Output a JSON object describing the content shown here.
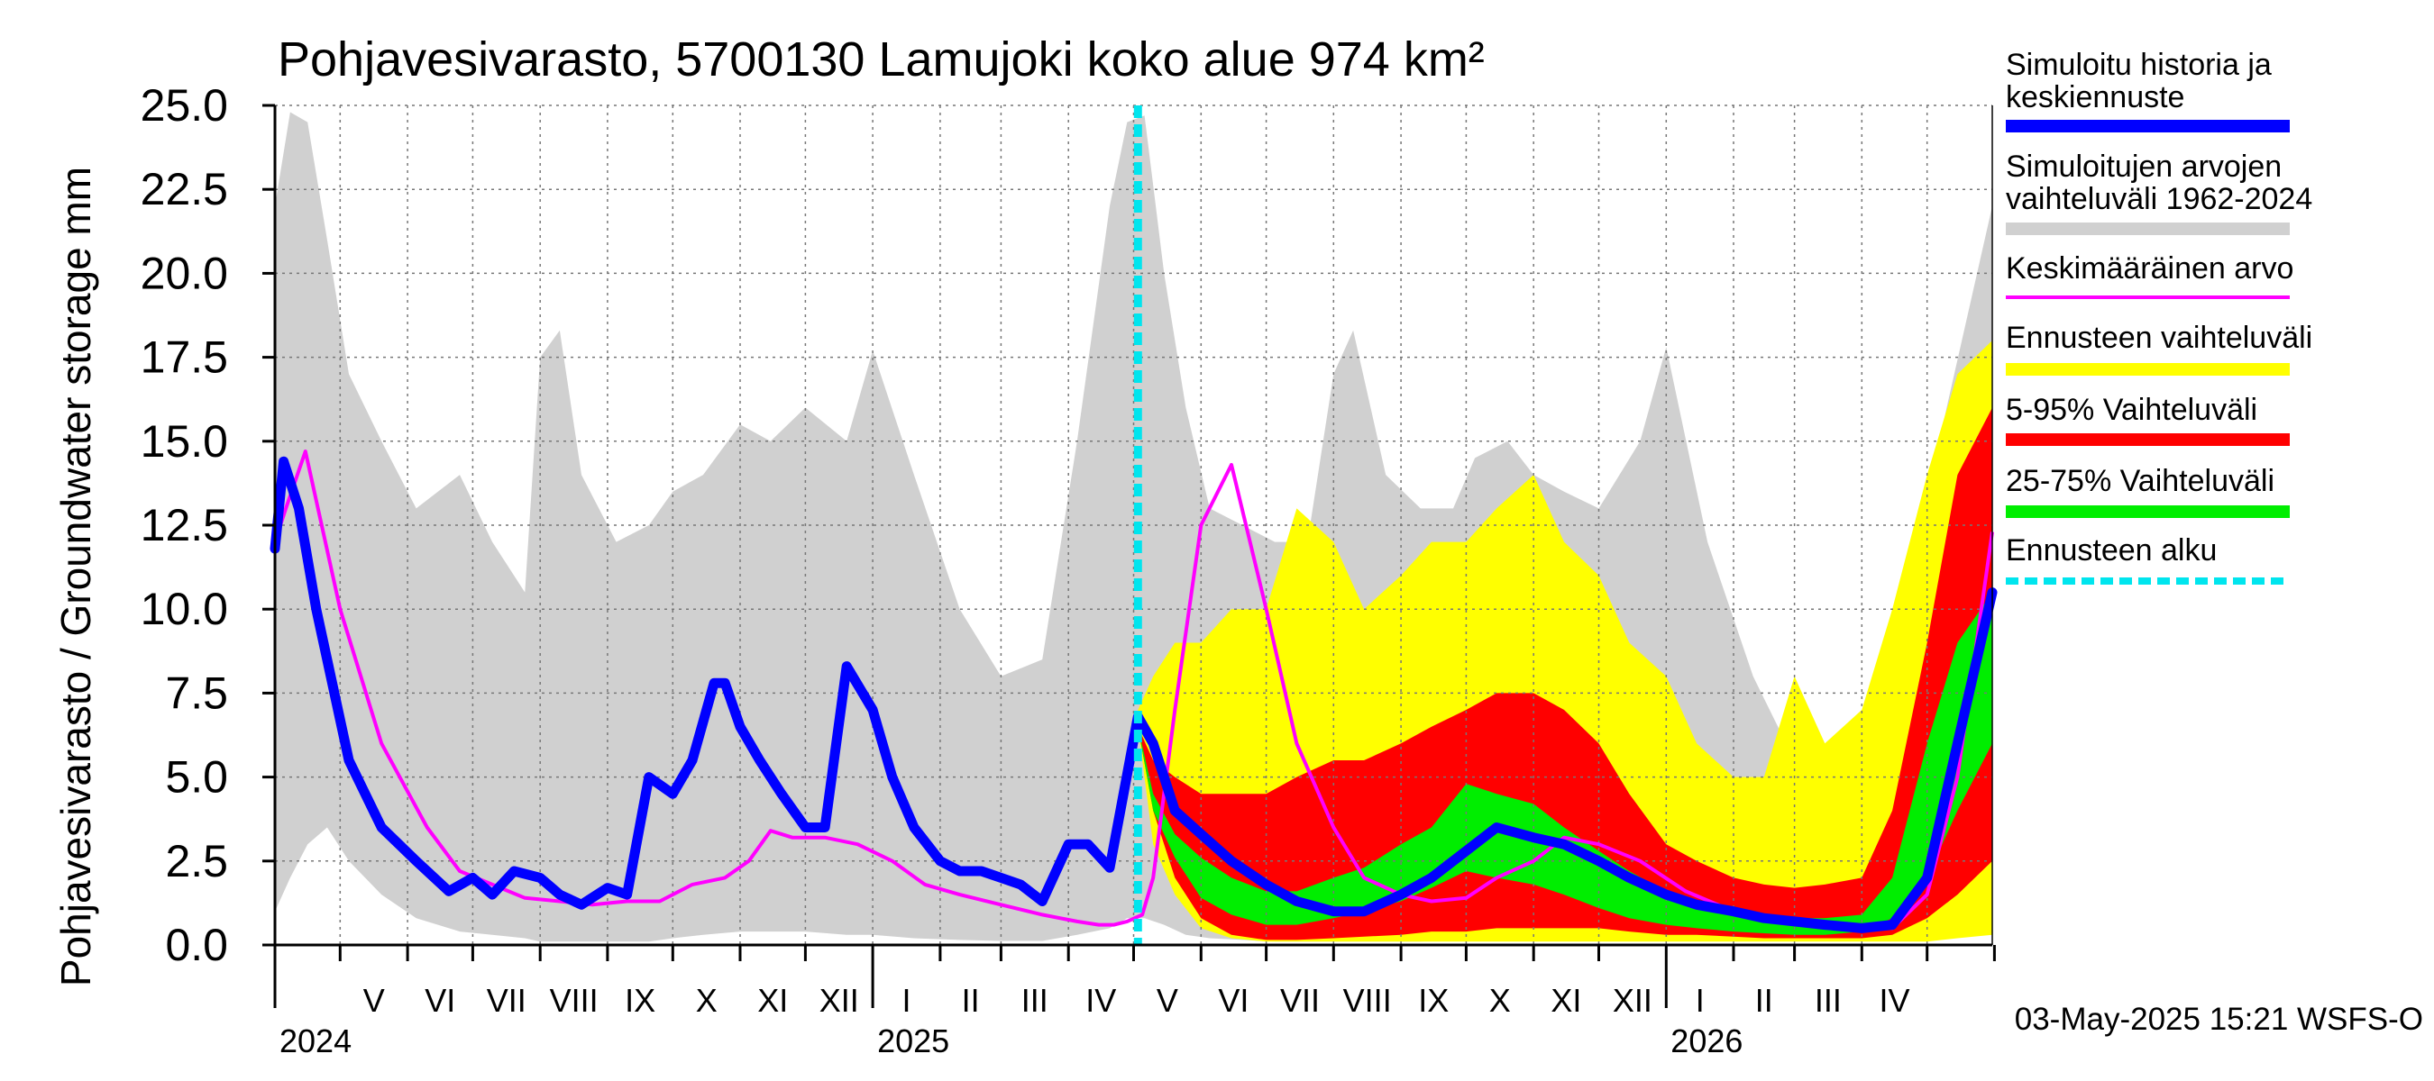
{
  "chart_data": {
    "type": "area",
    "title": "Pohjavesivarasto, 5700130 Lamujoki koko alue 974 km²",
    "ylabel": "Pohjavesivarasto / Groundwater storage   mm",
    "ylim": [
      0,
      25
    ],
    "yticks": [
      "0.0",
      "2.5",
      "5.0",
      "7.5",
      "10.0",
      "12.5",
      "15.0",
      "17.5",
      "20.0",
      "22.5",
      "25.0"
    ],
    "x_range": [
      "2024-04-01",
      "2026-05-31"
    ],
    "month_labels": [
      "V",
      "VI",
      "VII",
      "VIII",
      "IX",
      "X",
      "XI",
      "XII",
      "I",
      "II",
      "III",
      "IV",
      "V",
      "VI",
      "VII",
      "VIII",
      "IX",
      "X",
      "XI",
      "XII",
      "I",
      "II",
      "III",
      "IV"
    ],
    "year_labels": [
      "2024",
      "2025",
      "2026"
    ],
    "forecast_start": "2025-05-03",
    "footer": "03-May-2025 15:21 WSFS-O",
    "grid": true,
    "legend_position": "right",
    "legend": [
      {
        "label": "Simuloitu historia ja keskiennuste",
        "color": "#0000ff"
      },
      {
        "label": "Simuloitujen arvojen vaihteluväli 1962-2024",
        "color": "#d0d0d0"
      },
      {
        "label": "Keskimääräinen arvo",
        "color": "#ff00ff"
      },
      {
        "label": "Ennusteen vaihteluväli",
        "color": "#ffff00"
      },
      {
        "label": "5-95% Vaihteluväli",
        "color": "#ff0000"
      },
      {
        "label": "25-75% Vaihteluväli",
        "color": "#00ee00"
      },
      {
        "label": "Ennusteen alku",
        "color": "#00e5ee"
      }
    ],
    "series": {
      "hist_range": {
        "x": [
          "2024-04-01",
          "2024-04-08",
          "2024-04-16",
          "2024-04-25",
          "2024-05-05",
          "2024-05-20",
          "2024-06-05",
          "2024-06-25",
          "2024-07-10",
          "2024-07-25",
          "2024-08-01",
          "2024-08-10",
          "2024-08-20",
          "2024-09-05",
          "2024-09-20",
          "2024-10-01",
          "2024-10-15",
          "2024-11-01",
          "2024-11-15",
          "2024-12-01",
          "2024-12-20",
          "2025-01-01",
          "2025-01-20",
          "2025-02-10",
          "2025-03-01",
          "2025-03-20",
          "2025-04-05",
          "2025-04-20",
          "2025-04-28",
          "2025-05-06",
          "2025-05-15",
          "2025-05-25",
          "2025-06-05",
          "2025-06-20",
          "2025-07-05",
          "2025-07-20",
          "2025-08-01",
          "2025-08-10",
          "2025-08-25",
          "2025-09-10",
          "2025-09-25",
          "2025-10-05",
          "2025-10-20",
          "2025-11-01",
          "2025-11-15",
          "2025-12-01",
          "2025-12-20",
          "2026-01-01",
          "2026-01-20",
          "2026-02-10",
          "2026-03-01",
          "2026-03-20",
          "2026-04-05",
          "2026-04-20",
          "2026-05-10",
          "2026-05-31"
        ],
        "max": [
          22,
          24.8,
          24.5,
          21,
          17,
          15,
          13,
          14,
          12,
          10.5,
          17.5,
          18.3,
          14,
          12,
          12.5,
          13.5,
          14,
          15.5,
          15,
          16,
          15,
          17.7,
          14,
          10,
          8,
          8.5,
          15,
          22,
          24.5,
          24.7,
          20,
          16,
          13,
          12.5,
          12,
          12,
          17,
          18.3,
          14,
          13,
          13,
          14.5,
          15,
          14,
          13.5,
          13,
          15,
          17.8,
          12,
          8,
          5.5,
          4,
          6,
          10,
          16,
          22
        ],
        "min": [
          1,
          2,
          3,
          3.5,
          2.5,
          1.5,
          0.8,
          0.4,
          0.3,
          0.2,
          0.1,
          0.1,
          0.1,
          0.1,
          0.1,
          0.2,
          0.3,
          0.4,
          0.4,
          0.4,
          0.3,
          0.3,
          0.2,
          0.15,
          0.12,
          0.12,
          0.3,
          0.5,
          0.8,
          0.8,
          0.6,
          0.3,
          0.2,
          0.15,
          0.1,
          0.1,
          0.1,
          0.1,
          0.1,
          0.1,
          0.15,
          0.2,
          0.25,
          0.3,
          0.3,
          0.3,
          0.25,
          0.2,
          0.2,
          0.15,
          0.12,
          0.15,
          0.2,
          0.3,
          0.5,
          1
        ]
      },
      "forecast_full": {
        "x": [
          "2025-05-03",
          "2025-05-10",
          "2025-05-20",
          "2025-06-01",
          "2025-06-15",
          "2025-07-01",
          "2025-07-15",
          "2025-08-01",
          "2025-08-15",
          "2025-09-01",
          "2025-09-15",
          "2025-10-01",
          "2025-10-15",
          "2025-11-01",
          "2025-11-15",
          "2025-12-01",
          "2025-12-15",
          "2026-01-01",
          "2026-01-15",
          "2026-02-01",
          "2026-02-15",
          "2026-03-01",
          "2026-03-15",
          "2026-04-01",
          "2026-04-15",
          "2026-05-01",
          "2026-05-15",
          "2026-05-31"
        ],
        "max": [
          7,
          8,
          9,
          9,
          10,
          10,
          13,
          12,
          10,
          11,
          12,
          12,
          13,
          14,
          12,
          11,
          9,
          8,
          6,
          5,
          5,
          8,
          6,
          7,
          10,
          14,
          17,
          18
        ],
        "min": [
          6.5,
          3,
          1.5,
          0.5,
          0.2,
          0.1,
          0.1,
          0.1,
          0.1,
          0.1,
          0.1,
          0.1,
          0.1,
          0.1,
          0.1,
          0.1,
          0.1,
          0.1,
          0.1,
          0.1,
          0.1,
          0.1,
          0.1,
          0.1,
          0.1,
          0.1,
          0.2,
          0.3
        ]
      },
      "band_5_95": {
        "x": [
          "2025-05-03",
          "2025-05-10",
          "2025-05-20",
          "2025-06-01",
          "2025-06-15",
          "2025-07-01",
          "2025-07-15",
          "2025-08-01",
          "2025-08-15",
          "2025-09-01",
          "2025-09-15",
          "2025-10-01",
          "2025-10-15",
          "2025-11-01",
          "2025-11-15",
          "2025-12-01",
          "2025-12-15",
          "2026-01-01",
          "2026-01-15",
          "2026-02-01",
          "2026-02-15",
          "2026-03-01",
          "2026-03-15",
          "2026-04-01",
          "2026-04-15",
          "2026-05-01",
          "2026-05-15",
          "2026-05-31"
        ],
        "p95": [
          6.5,
          5.5,
          5,
          4.5,
          4.5,
          4.5,
          5,
          5.5,
          5.5,
          6,
          6.5,
          7,
          7.5,
          7.5,
          7,
          6,
          4.5,
          3,
          2.5,
          2,
          1.8,
          1.7,
          1.8,
          2,
          4,
          9,
          14,
          16
        ],
        "p5": [
          6.5,
          4,
          2,
          0.8,
          0.3,
          0.15,
          0.15,
          0.2,
          0.25,
          0.3,
          0.4,
          0.4,
          0.5,
          0.5,
          0.5,
          0.5,
          0.4,
          0.3,
          0.3,
          0.25,
          0.2,
          0.2,
          0.2,
          0.2,
          0.3,
          0.8,
          1.5,
          2.5
        ]
      },
      "band_25_75": {
        "x": [
          "2025-05-03",
          "2025-05-10",
          "2025-05-20",
          "2025-06-01",
          "2025-06-15",
          "2025-07-01",
          "2025-07-15",
          "2025-08-01",
          "2025-08-15",
          "2025-09-01",
          "2025-09-15",
          "2025-10-01",
          "2025-10-15",
          "2025-11-01",
          "2025-11-15",
          "2025-12-01",
          "2025-12-15",
          "2026-01-01",
          "2026-01-15",
          "2026-02-01",
          "2026-02-15",
          "2026-03-01",
          "2026-03-15",
          "2026-04-01",
          "2026-04-15",
          "2026-05-01",
          "2026-05-15",
          "2026-05-31"
        ],
        "p75": [
          6.5,
          4.5,
          3.3,
          2.6,
          2,
          1.6,
          1.6,
          2,
          2.3,
          3,
          3.5,
          4.8,
          4.5,
          4.2,
          3.5,
          2.8,
          2.2,
          1.6,
          1.3,
          1.1,
          0.9,
          0.8,
          0.8,
          0.9,
          2,
          6,
          9,
          10.5
        ],
        "p25": [
          6.5,
          4,
          2.6,
          1.4,
          0.9,
          0.6,
          0.6,
          0.8,
          1,
          1.3,
          1.7,
          2.2,
          2,
          1.8,
          1.5,
          1.1,
          0.8,
          0.6,
          0.5,
          0.4,
          0.35,
          0.3,
          0.3,
          0.4,
          0.8,
          2,
          4,
          6
        ]
      },
      "mean": {
        "x": [
          "2024-04-01",
          "2024-04-06",
          "2024-04-15",
          "2024-05-01",
          "2024-05-20",
          "2024-06-10",
          "2024-06-25",
          "2024-07-10",
          "2024-07-25",
          "2024-08-10",
          "2024-08-25",
          "2024-09-10",
          "2024-09-25",
          "2024-10-10",
          "2024-10-25",
          "2024-11-05",
          "2024-11-15",
          "2024-11-25",
          "2024-12-10",
          "2024-12-25",
          "2025-01-10",
          "2025-01-25",
          "2025-02-10",
          "2025-03-01",
          "2025-03-20",
          "2025-04-05",
          "2025-04-15",
          "2025-04-22",
          "2025-04-28",
          "2025-05-05",
          "2025-05-10",
          "2025-05-20",
          "2025-06-01",
          "2025-06-15",
          "2025-07-01",
          "2025-07-15",
          "2025-08-01",
          "2025-08-15",
          "2025-09-01",
          "2025-09-15",
          "2025-10-01",
          "2025-10-15",
          "2025-11-01",
          "2025-11-15",
          "2025-12-01",
          "2025-12-20",
          "2026-01-10",
          "2026-02-01",
          "2026-02-20",
          "2026-03-10",
          "2026-04-01",
          "2026-04-15",
          "2026-05-01",
          "2026-05-15",
          "2026-05-31"
        ],
        "y": [
          12,
          13,
          14.7,
          10,
          6,
          3.5,
          2.2,
          1.8,
          1.4,
          1.3,
          1.2,
          1.3,
          1.3,
          1.8,
          2,
          2.5,
          3.4,
          3.2,
          3.2,
          3,
          2.5,
          1.8,
          1.5,
          1.2,
          0.9,
          0.7,
          0.6,
          0.6,
          0.7,
          0.9,
          2,
          7,
          12.5,
          14.3,
          10,
          6,
          3.5,
          2,
          1.5,
          1.3,
          1.4,
          2,
          2.5,
          3.2,
          3,
          2.5,
          1.6,
          1,
          0.8,
          0.6,
          0.5,
          0.5,
          1.5,
          5,
          12.3
        ]
      },
      "simulated": {
        "x": [
          "2024-04-01",
          "2024-04-05",
          "2024-04-12",
          "2024-04-20",
          "2024-05-05",
          "2024-05-20",
          "2024-06-05",
          "2024-06-20",
          "2024-07-01",
          "2024-07-10",
          "2024-07-20",
          "2024-08-01",
          "2024-08-10",
          "2024-08-20",
          "2024-09-01",
          "2024-09-10",
          "2024-09-20",
          "2024-10-01",
          "2024-10-10",
          "2024-10-20",
          "2024-10-25",
          "2024-11-01",
          "2024-11-10",
          "2024-11-20",
          "2024-12-01",
          "2024-12-10",
          "2024-12-20",
          "2025-01-01",
          "2025-01-10",
          "2025-01-20",
          "2025-02-01",
          "2025-02-10",
          "2025-02-20",
          "2025-03-01",
          "2025-03-10",
          "2025-03-20",
          "2025-04-01",
          "2025-04-10",
          "2025-04-20",
          "2025-05-03",
          "2025-05-10",
          "2025-05-20",
          "2025-06-01",
          "2025-06-15",
          "2025-07-01",
          "2025-07-15",
          "2025-08-01",
          "2025-08-15",
          "2025-09-01",
          "2025-09-15",
          "2025-10-01",
          "2025-10-15",
          "2025-11-01",
          "2025-11-15",
          "2025-12-01",
          "2025-12-15",
          "2026-01-01",
          "2026-01-15",
          "2026-02-01",
          "2026-02-15",
          "2026-03-01",
          "2026-03-15",
          "2026-04-01",
          "2026-04-15",
          "2026-05-01",
          "2026-05-15",
          "2026-05-31"
        ],
        "y": [
          11.8,
          14.4,
          13,
          10,
          5.5,
          3.5,
          2.5,
          1.6,
          2,
          1.5,
          2.2,
          2,
          1.5,
          1.2,
          1.7,
          1.5,
          5,
          4.5,
          5.5,
          7.8,
          7.8,
          6.5,
          5.5,
          4.5,
          3.5,
          3.5,
          8.3,
          7,
          5,
          3.5,
          2.5,
          2.2,
          2.2,
          2,
          1.8,
          1.3,
          3,
          3,
          2.3,
          6.8,
          6,
          4,
          3.3,
          2.5,
          1.8,
          1.3,
          1,
          1,
          1.5,
          2,
          2.8,
          3.5,
          3.2,
          3,
          2.5,
          2,
          1.5,
          1.2,
          1,
          0.8,
          0.7,
          0.6,
          0.5,
          0.6,
          2,
          6,
          10.5
        ]
      }
    }
  }
}
